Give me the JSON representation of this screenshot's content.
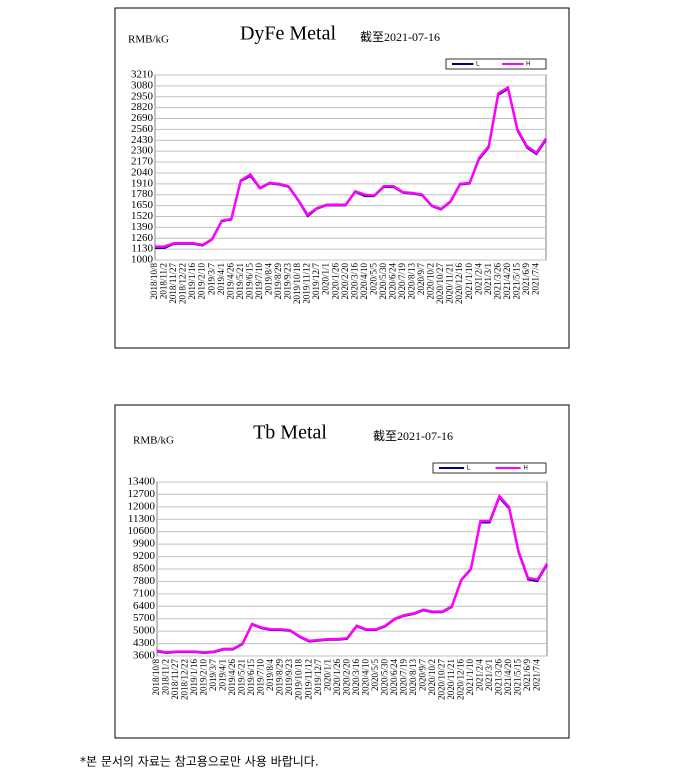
{
  "chart_data": [
    {
      "type": "line",
      "title": "DyFe Metal",
      "subtitle": "截至2021-07-16",
      "y_label": "RMB/kG",
      "categories": [
        "2018/10/8",
        "2018/11/2",
        "2018/11/27",
        "2018/12/22",
        "2019/1/16",
        "2019/2/10",
        "2019/3/7",
        "2019/4/1",
        "2019/4/26",
        "2019/5/21",
        "2019/6/15",
        "2019/7/10",
        "2019/8/4",
        "2019/8/29",
        "2019/9/23",
        "2019/10/18",
        "2019/11/12",
        "2019/12/7",
        "2020/1/1",
        "2020/1/26",
        "2020/2/20",
        "2020/3/16",
        "2020/4/10",
        "2020/5/5",
        "2020/5/30",
        "2020/6/24",
        "2020/7/19",
        "2020/8/13",
        "2020/9/7",
        "2020/10/2",
        "2020/10/27",
        "2020/11/21",
        "2020/12/16",
        "2021/1/10",
        "2021/2/4",
        "2021/3/1",
        "2021/3/26",
        "2021/4/20",
        "2021/5/15",
        "2021/6/9",
        "2021/7/4",
        null
      ],
      "series": [
        {
          "name": "L",
          "color": "#000080",
          "values": [
            1140,
            1140,
            1190,
            1190,
            1190,
            1170,
            1240,
            1460,
            1480,
            1940,
            2000,
            1850,
            1910,
            1900,
            1870,
            1710,
            1520,
            1610,
            1650,
            1650,
            1650,
            1810,
            1760,
            1760,
            1870,
            1870,
            1800,
            1790,
            1770,
            1640,
            1600,
            1690,
            1900,
            1910,
            2200,
            2340,
            2970,
            3040,
            2540,
            2340,
            2260,
            2430
          ]
        },
        {
          "name": "H",
          "color": "#ff00ff",
          "values": [
            1160,
            1160,
            1200,
            1200,
            1200,
            1180,
            1250,
            1470,
            1490,
            1950,
            2020,
            1860,
            1920,
            1910,
            1880,
            1720,
            1540,
            1620,
            1660,
            1660,
            1660,
            1820,
            1780,
            1770,
            1880,
            1880,
            1810,
            1800,
            1780,
            1650,
            1610,
            1700,
            1910,
            1920,
            2220,
            2360,
            2990,
            3060,
            2560,
            2360,
            2280,
            2450
          ]
        }
      ],
      "ylim": [
        1000,
        3210
      ],
      "yticks": [
        1000,
        1130,
        1260,
        1390,
        1520,
        1650,
        1780,
        1910,
        2040,
        2170,
        2300,
        2430,
        2560,
        2690,
        2820,
        2950,
        3080,
        3210
      ],
      "grid": true
    },
    {
      "type": "line",
      "title": "Tb Metal",
      "subtitle": "截至2021-07-16",
      "y_label": "RMB/kG",
      "categories": [
        "2018/10/8",
        "2018/11/2",
        "2018/11/27",
        "2018/12/22",
        "2019/1/16",
        "2019/2/10",
        "2019/3/7",
        "2019/4/1",
        "2019/4/26",
        "2019/5/21",
        "2019/6/15",
        "2019/7/10",
        "2019/8/4",
        "2019/8/29",
        "2019/9/23",
        "2019/10/18",
        "2019/11/12",
        "2019/12/7",
        "2020/1/1",
        "2020/1/26",
        "2020/2/20",
        "2020/3/16",
        "2020/4/10",
        "2020/5/5",
        "2020/5/30",
        "2020/6/24",
        "2020/7/19",
        "2020/8/13",
        "2020/9/7",
        "2020/10/2",
        "2020/10/27",
        "2020/11/21",
        "2020/12/16",
        "2021/1/10",
        "2021/2/4",
        "2021/3/1",
        "2021/3/26",
        "2021/4/20",
        "2021/5/15",
        "2021/6/9",
        "2021/7/4",
        null
      ],
      "series": [
        {
          "name": "L",
          "color": "#000080",
          "values": [
            3850,
            3750,
            3800,
            3800,
            3800,
            3750,
            3800,
            3950,
            3950,
            4250,
            5350,
            5150,
            5050,
            5050,
            5000,
            4650,
            4400,
            4450,
            4500,
            4500,
            4550,
            5250,
            5050,
            5050,
            5250,
            5650,
            5850,
            5950,
            6150,
            6050,
            6050,
            6350,
            7850,
            8450,
            11100,
            11100,
            12500,
            11900,
            9400,
            7900,
            7800,
            8700
          ]
        },
        {
          "name": "H",
          "color": "#ff00ff",
          "values": [
            3900,
            3800,
            3850,
            3850,
            3850,
            3800,
            3850,
            4000,
            4000,
            4300,
            5400,
            5200,
            5100,
            5100,
            5050,
            4700,
            4450,
            4500,
            4550,
            4550,
            4600,
            5300,
            5100,
            5100,
            5300,
            5700,
            5900,
            6000,
            6200,
            6100,
            6100,
            6400,
            7900,
            8500,
            11200,
            11200,
            12600,
            12000,
            9500,
            8000,
            7900,
            8800
          ]
        }
      ],
      "ylim": [
        3600,
        13400
      ],
      "yticks": [
        3600,
        4300,
        5000,
        5700,
        6400,
        7100,
        7800,
        8500,
        9200,
        9900,
        10600,
        11300,
        12000,
        12700,
        13400
      ],
      "grid": true
    }
  ],
  "footnote": "*본 문서의 자료는 참고용으로만 사용 바랍니다."
}
